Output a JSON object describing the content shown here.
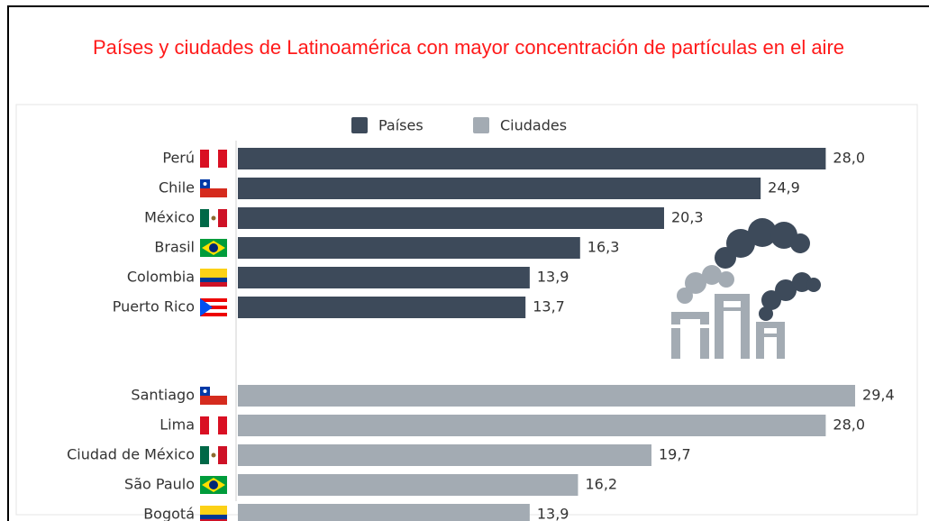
{
  "chart_data": {
    "type": "bar",
    "orientation": "horizontal",
    "title": "Países y ciudades de Latinoamérica con mayor concentración de partículas en el aire",
    "categories": [
      "Perú",
      "Chile",
      "México",
      "Brasil",
      "Colombia",
      "Puerto Rico",
      "Santiago",
      "Lima",
      "Ciudad de México",
      "São Paulo",
      "Bogotá"
    ],
    "series": [
      {
        "name": "Países",
        "color": "#3d4a5a",
        "values": [
          28.0,
          24.9,
          20.3,
          16.3,
          13.9,
          13.7,
          null,
          null,
          null,
          null,
          null
        ],
        "value_labels": [
          "28,0",
          "24,9",
          "20,3",
          "16,3",
          "13,9",
          "13,7",
          null,
          null,
          null,
          null,
          null
        ]
      },
      {
        "name": "Ciudades",
        "color": "#a3abb3",
        "values": [
          null,
          null,
          null,
          null,
          null,
          null,
          29.4,
          28.0,
          19.7,
          16.2,
          13.9
        ],
        "value_labels": [
          null,
          null,
          null,
          null,
          null,
          null,
          "29,4",
          "28,0",
          "19,7",
          "16,2",
          "13,9"
        ]
      }
    ]
  }
}
